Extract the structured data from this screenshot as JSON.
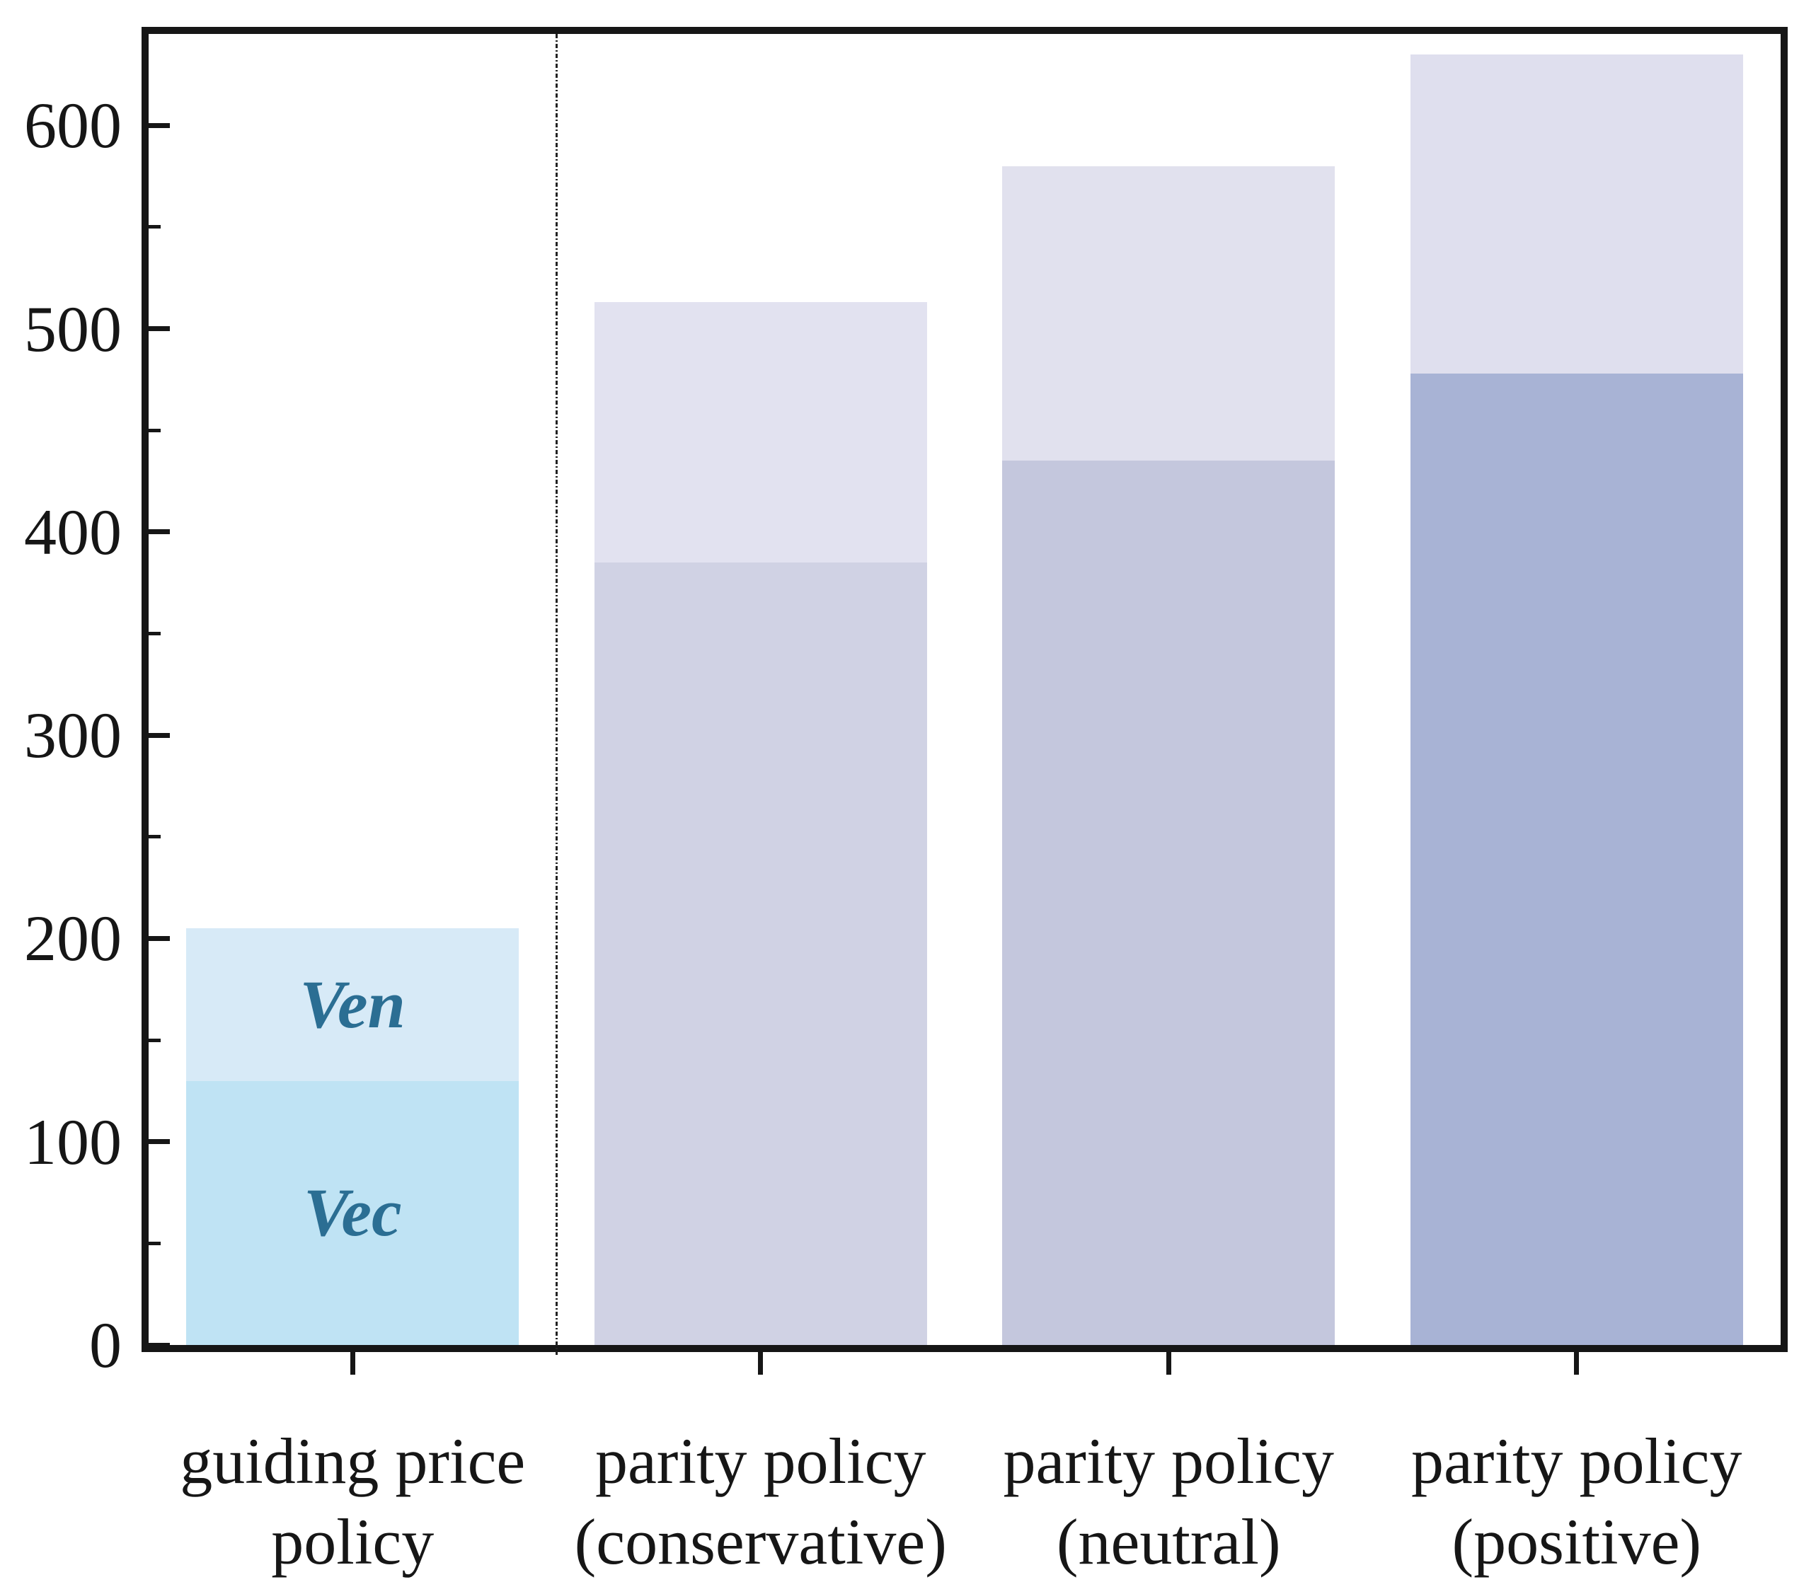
{
  "figure": {
    "title": "",
    "annotation_color": "#2b6e93",
    "frame_color": "#161616"
  },
  "chart_data": {
    "type": "bar",
    "stacked": true,
    "title": "",
    "xlabel": "",
    "ylabel": "",
    "grid": false,
    "legend": false,
    "ylim": [
      0,
      645
    ],
    "yticks": [
      0,
      100,
      200,
      300,
      400,
      500,
      600
    ],
    "minor_yticks": [
      50,
      150,
      250,
      350,
      450,
      550
    ],
    "categories": [
      [
        "guiding price",
        "policy"
      ],
      [
        "parity policy",
        "(conservative)"
      ],
      [
        "parity policy",
        "(neutral)"
      ],
      [
        "parity policy",
        "(positive)"
      ]
    ],
    "series": [
      {
        "name": "Vec",
        "values": [
          130,
          385,
          435,
          478
        ],
        "colors": [
          "#bfe3f4",
          "#d0d2e4",
          "#c4c7dd",
          "#a8b3d5"
        ]
      },
      {
        "name": "Ven",
        "values": [
          75,
          128,
          145,
          157
        ],
        "colors": [
          "#d7eaf7",
          "#e2e2f0",
          "#e1e1ee",
          "#dfdfee"
        ]
      }
    ],
    "totals": [
      205,
      513,
      580,
      635
    ],
    "annotations": [
      {
        "text": "Ven",
        "category": 0,
        "series": "Ven"
      },
      {
        "text": "Vec",
        "category": 0,
        "series": "Vec"
      }
    ],
    "divider_after_category": 0,
    "divider_style": "dash-dot",
    "legend_position": "none"
  }
}
